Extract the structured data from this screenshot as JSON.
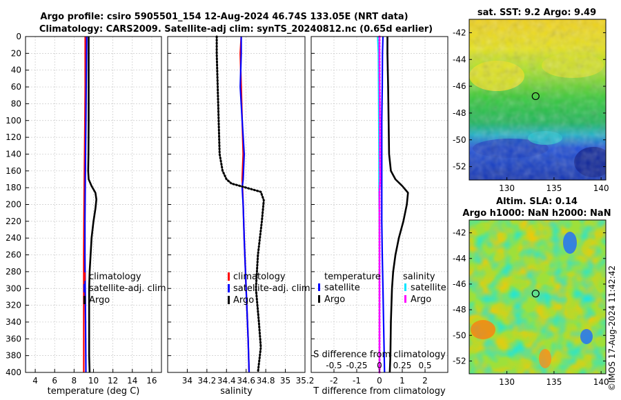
{
  "figure": {
    "title_line1": "Argo profile: csiro 5905501_154 12-Aug-2024 46.74S 133.05E (NRT data)",
    "title_line2": "Climatology: CARS2009. Satellite-adj clim: synTS_20240812.nc (0.65d earlier)",
    "map1_title": "sat. SST: 9.2 Argo: 9.49",
    "map2_title_line1": "Altim. SLA: 0.14",
    "map2_title_line2": "Argo h1000: NaN h2000: NaN",
    "timestamp": "©IMOS 17-Aug-2024 11:42:42"
  },
  "colors": {
    "climatology": "#ff0000",
    "satellite": "#0000ff",
    "argo": "#000000",
    "salinity_satellite": "#00e5ff",
    "salinity_argo": "#ff00ff"
  },
  "chart_data": [
    {
      "type": "line",
      "name": "temperature",
      "xlabel": "temperature (deg C)",
      "ylabel": "",
      "xlim": [
        3,
        17
      ],
      "ylim": [
        400,
        0
      ],
      "xticks": [
        "4",
        "6",
        "8",
        "10",
        "12",
        "14",
        "16"
      ],
      "xtick_values": [
        4,
        6,
        8,
        10,
        12,
        14,
        16
      ],
      "yticks": [
        "0",
        "20",
        "40",
        "60",
        "80",
        "100",
        "120",
        "140",
        "160",
        "180",
        "200",
        "220",
        "240",
        "260",
        "280",
        "300",
        "320",
        "340",
        "360",
        "380",
        "400"
      ],
      "ytick_values": [
        0,
        20,
        40,
        60,
        80,
        100,
        120,
        140,
        160,
        180,
        200,
        220,
        240,
        260,
        280,
        300,
        320,
        340,
        360,
        380,
        400
      ],
      "legend": [
        "climatology",
        "satellite-adj. clim",
        "Argo"
      ],
      "legend_position": "lower-right",
      "grid": true,
      "series": [
        {
          "name": "climatology",
          "style": "solid",
          "color_key": "climatology",
          "points": [
            [
              9.15,
              0
            ],
            [
              9.15,
              20
            ],
            [
              9.15,
              60
            ],
            [
              9.12,
              100
            ],
            [
              9.08,
              140
            ],
            [
              9.05,
              180
            ],
            [
              9.02,
              220
            ],
            [
              9.0,
              260
            ],
            [
              9.0,
              300
            ],
            [
              9.0,
              340
            ],
            [
              9.0,
              400
            ]
          ]
        },
        {
          "name": "satellite-adj. clim",
          "style": "solid",
          "color_key": "satellite",
          "points": [
            [
              9.3,
              0
            ],
            [
              9.28,
              20
            ],
            [
              9.25,
              60
            ],
            [
              9.22,
              100
            ],
            [
              9.18,
              140
            ],
            [
              9.15,
              180
            ],
            [
              9.12,
              220
            ],
            [
              9.12,
              260
            ],
            [
              9.15,
              300
            ],
            [
              9.18,
              340
            ],
            [
              9.22,
              400
            ]
          ]
        },
        {
          "name": "Argo",
          "style": "solid",
          "color_key": "argo",
          "points": [
            [
              9.5,
              0
            ],
            [
              9.5,
              20
            ],
            [
              9.5,
              60
            ],
            [
              9.5,
              100
            ],
            [
              9.48,
              140
            ],
            [
              9.45,
              160
            ],
            [
              9.5,
              170
            ],
            [
              9.8,
              178
            ],
            [
              10.2,
              186
            ],
            [
              10.3,
              194
            ],
            [
              10.2,
              205
            ],
            [
              10.0,
              220
            ],
            [
              9.8,
              240
            ],
            [
              9.7,
              260
            ],
            [
              9.6,
              280
            ],
            [
              9.55,
              300
            ],
            [
              9.55,
              340
            ],
            [
              9.55,
              380
            ],
            [
              9.6,
              400
            ]
          ]
        }
      ]
    },
    {
      "type": "line",
      "name": "salinity",
      "xlabel": "salinity",
      "xlim": [
        33.8,
        35.2
      ],
      "ylim": [
        400,
        0
      ],
      "xticks": [
        "34",
        "34.2",
        "34.4",
        "34.6",
        "34.8",
        "35",
        "35.2"
      ],
      "xtick_values": [
        34,
        34.2,
        34.4,
        34.6,
        34.8,
        35,
        35.2
      ],
      "legend": [
        "climatology",
        "satellite-adj. clim",
        "Argo"
      ],
      "legend_position": "lower-right",
      "grid": true,
      "series": [
        {
          "name": "climatology",
          "style": "solid",
          "color_key": "climatology",
          "points": [
            [
              34.55,
              0
            ],
            [
              34.54,
              20
            ],
            [
              34.55,
              60
            ],
            [
              34.56,
              100
            ],
            [
              34.57,
              140
            ],
            [
              34.56,
              170
            ],
            [
              34.57,
              200
            ],
            [
              34.58,
              240
            ],
            [
              34.6,
              300
            ],
            [
              34.62,
              360
            ],
            [
              34.63,
              400
            ]
          ]
        },
        {
          "name": "satellite-adj. clim",
          "style": "solid",
          "color_key": "satellite",
          "points": [
            [
              34.55,
              0
            ],
            [
              34.55,
              20
            ],
            [
              34.54,
              60
            ],
            [
              34.56,
              100
            ],
            [
              34.58,
              140
            ],
            [
              34.57,
              170
            ],
            [
              34.56,
              180
            ],
            [
              34.57,
              200
            ],
            [
              34.58,
              240
            ],
            [
              34.6,
              300
            ],
            [
              34.62,
              360
            ],
            [
              34.63,
              400
            ]
          ]
        },
        {
          "name": "Argo",
          "style": "dotted",
          "color_key": "argo",
          "points": [
            [
              34.3,
              0
            ],
            [
              34.3,
              20
            ],
            [
              34.31,
              60
            ],
            [
              34.32,
              100
            ],
            [
              34.33,
              140
            ],
            [
              34.36,
              160
            ],
            [
              34.4,
              170
            ],
            [
              34.45,
              175
            ],
            [
              34.6,
              180
            ],
            [
              34.75,
              185
            ],
            [
              34.78,
              195
            ],
            [
              34.76,
              220
            ],
            [
              34.72,
              260
            ],
            [
              34.7,
              300
            ],
            [
              34.73,
              340
            ],
            [
              34.75,
              370
            ],
            [
              34.72,
              400
            ]
          ]
        }
      ]
    },
    {
      "type": "line",
      "name": "difference",
      "xlabel": "T difference from climatology",
      "secondary_xlabel": "S difference from climatology",
      "xlim": [
        -3,
        3
      ],
      "ylim": [
        400,
        0
      ],
      "xticks": [
        "-2",
        "-1",
        "0",
        "1",
        "2"
      ],
      "xtick_values": [
        -2,
        -1,
        0,
        1,
        2
      ],
      "secondary_xticks": [
        "-0.5",
        "-0.25",
        "0",
        "0.25",
        "0.5"
      ],
      "secondary_xlim": [
        -0.75,
        0.75
      ],
      "legend_temperature_header": "temperature",
      "legend_salinity_header": "salinity",
      "legend_temperature": [
        "satellite",
        "Argo"
      ],
      "legend_salinity": [
        "satellite",
        "Argo"
      ],
      "legend_position": "lower-right",
      "grid": true,
      "series": [
        {
          "name": "T satellite",
          "style": "solid",
          "color_key": "satellite",
          "points": [
            [
              0.15,
              0
            ],
            [
              0.13,
              20
            ],
            [
              0.12,
              60
            ],
            [
              0.1,
              100
            ],
            [
              0.1,
              140
            ],
            [
              0.1,
              180
            ],
            [
              0.1,
              220
            ],
            [
              0.12,
              260
            ],
            [
              0.15,
              300
            ],
            [
              0.18,
              340
            ],
            [
              0.22,
              400
            ]
          ]
        },
        {
          "name": "T Argo",
          "style": "solid",
          "color_key": "argo",
          "points": [
            [
              0.35,
              0
            ],
            [
              0.35,
              20
            ],
            [
              0.38,
              60
            ],
            [
              0.4,
              100
            ],
            [
              0.42,
              140
            ],
            [
              0.5,
              160
            ],
            [
              0.7,
              170
            ],
            [
              1.0,
              178
            ],
            [
              1.25,
              186
            ],
            [
              1.2,
              200
            ],
            [
              1.05,
              220
            ],
            [
              0.85,
              240
            ],
            [
              0.7,
              260
            ],
            [
              0.6,
              280
            ],
            [
              0.55,
              300
            ],
            [
              0.5,
              340
            ],
            [
              0.48,
              380
            ],
            [
              0.45,
              400
            ]
          ]
        },
        {
          "name": "S satellite",
          "style": "solid",
          "color_key": "salinity_satellite",
          "points": [
            [
              -0.08,
              0
            ],
            [
              -0.05,
              20
            ],
            [
              -0.04,
              60
            ],
            [
              -0.03,
              100
            ],
            [
              -0.02,
              140
            ],
            [
              -0.02,
              180
            ],
            [
              -0.01,
              220
            ],
            [
              0.0,
              260
            ],
            [
              0.0,
              300
            ],
            [
              0.0,
              340
            ],
            [
              0.0,
              400
            ]
          ]
        },
        {
          "name": "S Argo",
          "style": "dotted",
          "color_key": "salinity_argo",
          "points": [
            [
              0.0,
              0
            ],
            [
              0.0,
              20
            ],
            [
              0.01,
              60
            ],
            [
              0.02,
              100
            ],
            [
              0.02,
              140
            ],
            [
              0.03,
              170
            ],
            [
              0.0,
              185
            ],
            [
              0.0,
              220
            ],
            [
              0.0,
              300
            ],
            [
              0.0,
              400
            ]
          ]
        }
      ]
    },
    {
      "type": "heatmap",
      "name": "sst_map",
      "title": "sat. SST: 9.2 Argo: 9.49",
      "xlim": [
        126,
        140.5
      ],
      "ylim": [
        -53,
        -41
      ],
      "xticks": [
        "130",
        "135",
        "140"
      ],
      "xtick_values": [
        130,
        135,
        140
      ],
      "yticks": [
        "-42",
        "-44",
        "-46",
        "-48",
        "-50",
        "-52"
      ],
      "ytick_values": [
        -42,
        -44,
        -46,
        -48,
        -50,
        -52
      ],
      "yaxis_side": "right",
      "marker": {
        "lon": 133.05,
        "lat": -46.74
      }
    },
    {
      "type": "heatmap",
      "name": "sla_map",
      "title": "Altim. SLA: 0.14",
      "subtitle": "Argo h1000: NaN h2000: NaN",
      "xlim": [
        126,
        140.5
      ],
      "ylim": [
        -53,
        -41
      ],
      "xticks": [
        "130",
        "135",
        "140"
      ],
      "xtick_values": [
        130,
        135,
        140
      ],
      "yticks": [
        "-42",
        "-44",
        "-46",
        "-48",
        "-50",
        "-52"
      ],
      "ytick_values": [
        -42,
        -44,
        -46,
        -48,
        -50,
        -52
      ],
      "yaxis_side": "right",
      "marker": {
        "lon": 133.05,
        "lat": -46.74
      }
    }
  ]
}
